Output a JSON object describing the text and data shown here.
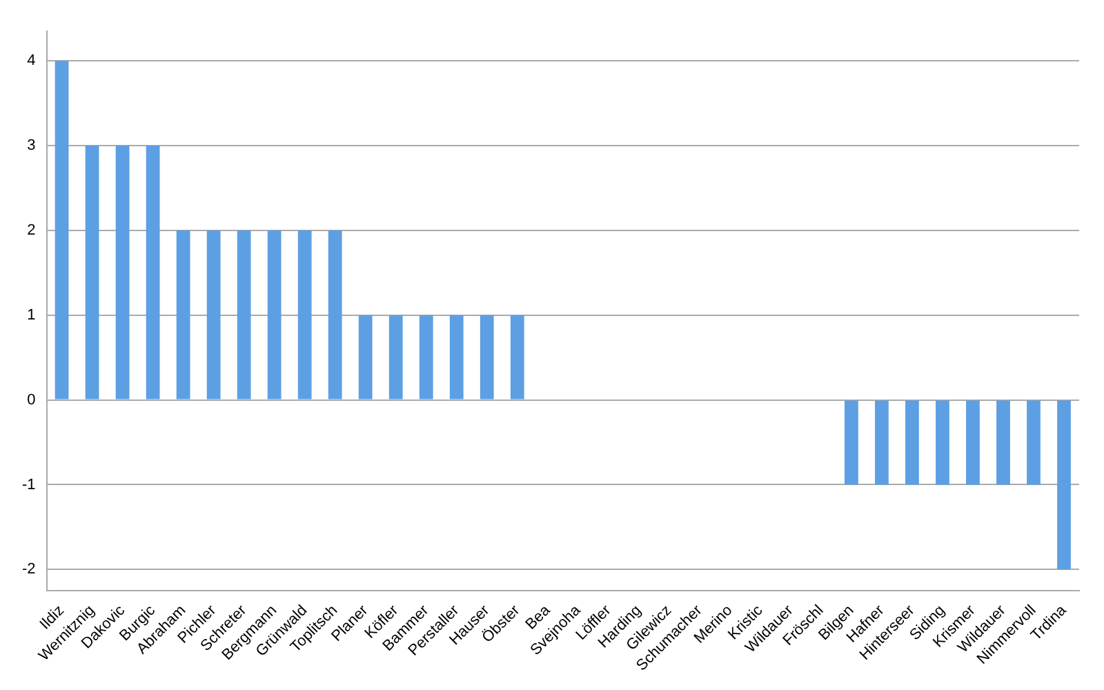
{
  "chart_data": {
    "type": "bar",
    "categories": [
      "Ildiz",
      "Wernitznig",
      "Dakovic",
      "Burgic",
      "Abraham",
      "Pichler",
      "Schreter",
      "Bergmann",
      "Grünwald",
      "Toplitsch",
      "Planer",
      "Köfler",
      "Bammer",
      "Perstaller",
      "Hauser",
      "Öbster",
      "Bea",
      "Svejnoha",
      "Löffler",
      "Harding",
      "Gilewicz",
      "Schumacher",
      "Merino",
      "Kristic",
      "Wildauer",
      "Fröschl",
      "Bilgen",
      "Hafner",
      "Hinterseer",
      "Siding",
      "Krismer",
      "Wildauer",
      "Nimmervoll",
      "Trdina"
    ],
    "values": [
      4,
      3,
      3,
      3,
      2,
      2,
      2,
      2,
      2,
      2,
      1,
      1,
      1,
      1,
      1,
      1,
      0,
      0,
      0,
      0,
      0,
      0,
      0,
      0,
      0,
      0,
      -1,
      -1,
      -1,
      -1,
      -1,
      -1,
      -1,
      -2
    ],
    "color": "#5d9fe3",
    "ylim": [
      -2.25,
      4.35
    ],
    "yticks": [
      -2,
      -1,
      0,
      1,
      2,
      3,
      4
    ],
    "grid": "y"
  }
}
